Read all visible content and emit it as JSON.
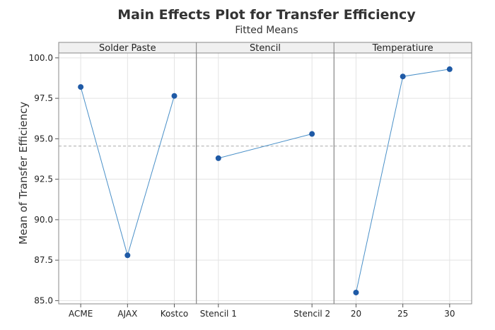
{
  "chart_data": {
    "type": "line",
    "title": "Main Effects Plot for Transfer Efficiency",
    "subtitle": "Fitted Means",
    "ylabel": "Mean of Transfer Efficiency",
    "ylim": [
      84.8,
      100.3
    ],
    "yticks": [
      "85.0",
      "87.5",
      "90.0",
      "92.5",
      "95.0",
      "97.5",
      "100.0"
    ],
    "reference_line": 94.55,
    "grid": true,
    "colors": {
      "line": "#4a90c8",
      "marker": "#1f5aa6",
      "reference": "#aaaaaa",
      "grid": "#e3e3e3",
      "strip_bg": "#f0f0f0"
    },
    "panels": [
      {
        "name": "Solder Paste",
        "categories": [
          "ACME",
          "AJAX",
          "Kostco"
        ],
        "values": [
          98.2,
          87.8,
          97.65
        ]
      },
      {
        "name": "Stencil",
        "categories": [
          "Stencil 1",
          "Stencil 2"
        ],
        "values": [
          93.8,
          95.3
        ]
      },
      {
        "name": "Temperatiure",
        "categories": [
          "20",
          "25",
          "30"
        ],
        "values": [
          85.5,
          98.85,
          99.3
        ]
      }
    ]
  }
}
